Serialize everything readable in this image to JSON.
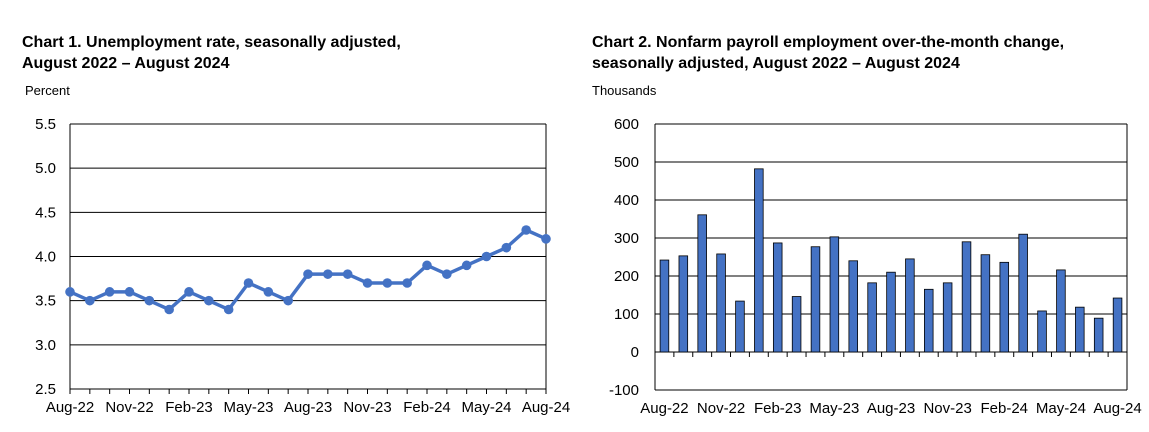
{
  "chart_data": [
    {
      "type": "line",
      "title_line1": "Chart 1. Unemployment rate, seasonally adjusted,",
      "title_line2": "August 2022 – August 2024",
      "ylabel": "Percent",
      "ylim": [
        2.5,
        5.5
      ],
      "yticks": [
        "2.5",
        "3.0",
        "3.5",
        "4.0",
        "4.5",
        "5.0",
        "5.5"
      ],
      "xtick_labels": [
        "Aug-22",
        "Nov-22",
        "Feb-23",
        "May-23",
        "Aug-23",
        "Nov-23",
        "Feb-24",
        "May-24",
        "Aug-24"
      ],
      "xtick_every": 3,
      "x": [
        "Aug-22",
        "Sep-22",
        "Oct-22",
        "Nov-22",
        "Dec-22",
        "Jan-23",
        "Feb-23",
        "Mar-23",
        "Apr-23",
        "May-23",
        "Jun-23",
        "Jul-23",
        "Aug-23",
        "Sep-23",
        "Oct-23",
        "Nov-23",
        "Dec-23",
        "Jan-24",
        "Feb-24",
        "Mar-24",
        "Apr-24",
        "May-24",
        "Jun-24",
        "Jul-24",
        "Aug-24"
      ],
      "series": [
        {
          "values": [
            3.6,
            3.5,
            3.6,
            3.6,
            3.5,
            3.4,
            3.6,
            3.5,
            3.4,
            3.7,
            3.6,
            3.5,
            3.8,
            3.8,
            3.8,
            3.7,
            3.7,
            3.7,
            3.9,
            3.8,
            3.9,
            4.0,
            4.1,
            4.3,
            4.2
          ]
        }
      ],
      "grid": true,
      "color": "#4472c4"
    },
    {
      "type": "bar",
      "title_line1": "Chart 2. Nonfarm payroll employment over-the-month change,",
      "title_line2": "seasonally adjusted, August 2022 – August 2024",
      "ylabel": "Thousands",
      "ylim": [
        -100,
        600
      ],
      "yticks": [
        "-100",
        "0",
        "100",
        "200",
        "300",
        "400",
        "500",
        "600"
      ],
      "xtick_labels": [
        "Aug-22",
        "Nov-22",
        "Feb-23",
        "May-23",
        "Aug-23",
        "Nov-23",
        "Feb-24",
        "May-24",
        "Aug-24"
      ],
      "xtick_every": 3,
      "x": [
        "Aug-22",
        "Sep-22",
        "Oct-22",
        "Nov-22",
        "Dec-22",
        "Jan-23",
        "Feb-23",
        "Mar-23",
        "Apr-23",
        "May-23",
        "Jun-23",
        "Jul-23",
        "Aug-23",
        "Sep-23",
        "Oct-23",
        "Nov-23",
        "Dec-23",
        "Jan-24",
        "Feb-24",
        "Mar-24",
        "Apr-24",
        "May-24",
        "Jun-24",
        "Jul-24",
        "Aug-24"
      ],
      "series": [
        {
          "values": [
            242,
            253,
            361,
            258,
            134,
            482,
            287,
            146,
            277,
            303,
            240,
            182,
            210,
            245,
            165,
            182,
            290,
            256,
            236,
            310,
            108,
            216,
            118,
            89,
            142
          ]
        }
      ],
      "grid": true,
      "color": "#4472c4"
    }
  ]
}
